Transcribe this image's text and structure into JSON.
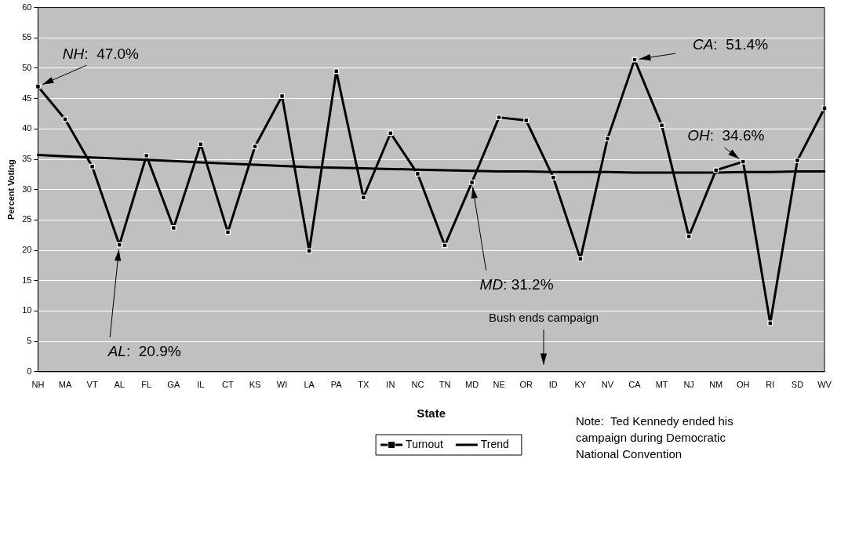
{
  "chart_data": {
    "type": "line",
    "xlabel": "State",
    "ylabel": "Percent Voting",
    "categories": [
      "NH",
      "MA",
      "VT",
      "AL",
      "FL",
      "GA",
      "IL",
      "CT",
      "KS",
      "WI",
      "LA",
      "PA",
      "TX",
      "IN",
      "NC",
      "TN",
      "MD",
      "NE",
      "OR",
      "ID",
      "KY",
      "NV",
      "CA",
      "MT",
      "NJ",
      "NM",
      "OH",
      "RI",
      "SD",
      "WV"
    ],
    "series": [
      {
        "name": "Turnout",
        "color": "#000000",
        "values": [
          47.0,
          41.6,
          33.8,
          20.9,
          35.6,
          23.7,
          37.5,
          23.0,
          37.1,
          45.4,
          19.9,
          49.5,
          28.7,
          39.3,
          32.6,
          20.8,
          31.2,
          41.9,
          41.4,
          32.0,
          18.6,
          38.4,
          51.4,
          40.6,
          22.3,
          33.2,
          34.6,
          8.0,
          34.8,
          43.4
        ]
      },
      {
        "name": "Trend",
        "color": "#000000",
        "type": "line",
        "marker": "none",
        "values": [
          35.7,
          35.5,
          35.3,
          35.1,
          34.9,
          34.7,
          34.5,
          34.3,
          34.1,
          33.9,
          33.7,
          33.6,
          33.5,
          33.4,
          33.3,
          33.2,
          33.1,
          33.0,
          33.0,
          32.9,
          32.9,
          32.9,
          32.8,
          32.8,
          32.8,
          32.8,
          32.9,
          32.9,
          33.0,
          33.0
        ]
      }
    ],
    "ylim": [
      0,
      60
    ],
    "yticks": [
      0,
      5,
      10,
      15,
      20,
      25,
      30,
      35,
      40,
      45,
      50,
      55,
      60
    ],
    "grid": "y",
    "legend": "bottom",
    "marker": "square",
    "line_style": "solid",
    "annotations": [
      {
        "text": "NH:  47.0%",
        "x": "NH",
        "y": 47.0
      },
      {
        "text": "AL:  20.9%",
        "x": "AL",
        "y": 20.9
      },
      {
        "text": "MD: 31.2%",
        "x": "MD",
        "y": 31.2
      },
      {
        "text": "CA:  51.4%",
        "x": "CA",
        "y": 51.4
      },
      {
        "text": "OH:  34.6%",
        "x": "OH",
        "y": 34.6
      },
      "Bush ends campaign",
      "Note:  Ted Kennedy ended his campaign during Democratic National Convention"
    ]
  }
}
